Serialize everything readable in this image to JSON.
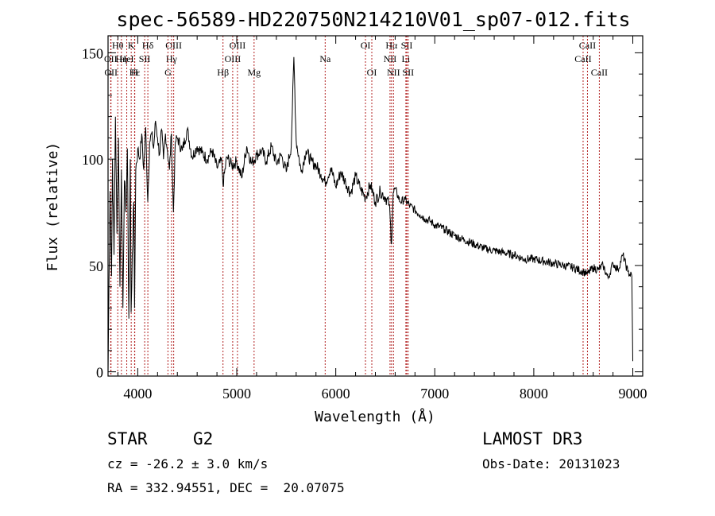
{
  "chart_data": {
    "type": "line",
    "title": "spec-56589-HD220750N214210V01_sp07-012.fits",
    "xlabel": "Wavelength (Å)",
    "ylabel": "Flux (relative)",
    "xlim": [
      3700,
      9100
    ],
    "ylim": [
      -2,
      158
    ],
    "x_ticks": [
      4000,
      5000,
      6000,
      7000,
      8000,
      9000
    ],
    "x_tick_labels": [
      "4000",
      "5000",
      "6000",
      "7000",
      "8000",
      "9000"
    ],
    "y_ticks": [
      0,
      50,
      100,
      150
    ],
    "y_tick_labels": [
      "0",
      "50",
      "100",
      "150"
    ],
    "series": [
      {
        "name": "spectrum",
        "x": [
          3700,
          3720,
          3735,
          3745,
          3760,
          3775,
          3790,
          3805,
          3820,
          3835,
          3850,
          3865,
          3880,
          3895,
          3910,
          3925,
          3933,
          3945,
          3960,
          3968,
          3980,
          4000,
          4020,
          4040,
          4060,
          4080,
          4101,
          4120,
          4140,
          4160,
          4180,
          4200,
          4220,
          4240,
          4260,
          4280,
          4300,
          4320,
          4340,
          4360,
          4380,
          4400,
          4450,
          4500,
          4550,
          4600,
          4650,
          4700,
          4750,
          4800,
          4850,
          4861,
          4900,
          4950,
          5000,
          5050,
          5100,
          5150,
          5200,
          5250,
          5300,
          5350,
          5400,
          5450,
          5500,
          5550,
          5577,
          5600,
          5650,
          5700,
          5750,
          5800,
          5850,
          5893,
          5950,
          6000,
          6050,
          6100,
          6150,
          6200,
          6250,
          6300,
          6350,
          6400,
          6450,
          6500,
          6540,
          6563,
          6580,
          6600,
          6650,
          6700,
          6750,
          6800,
          6850,
          6900,
          6950,
          7000,
          7100,
          7200,
          7300,
          7400,
          7500,
          7600,
          7700,
          7800,
          7900,
          8000,
          8100,
          8200,
          8300,
          8400,
          8500,
          8542,
          8600,
          8650,
          8700,
          8750,
          8800,
          8850,
          8900,
          8950,
          8990,
          9000
        ],
        "y": [
          0,
          85,
          45,
          100,
          55,
          120,
          65,
          110,
          40,
          95,
          30,
          90,
          75,
          105,
          25,
          100,
          28,
          55,
          80,
          30,
          95,
          105,
          100,
          112,
          95,
          115,
          80,
          108,
          112,
          105,
          118,
          110,
          102,
          114,
          100,
          112,
          104,
          95,
          112,
          75,
          108,
          110,
          104,
          114,
          101,
          106,
          103,
          100,
          104,
          96,
          99,
          88,
          101,
          97,
          99,
          91,
          106,
          98,
          102,
          104,
          99,
          106,
          98,
          102,
          94,
          106,
          148,
          109,
          94,
          104,
          99,
          97,
          93,
          89,
          96,
          87,
          94,
          89,
          84,
          92,
          86,
          82,
          88,
          80,
          85,
          82,
          79,
          60,
          84,
          86,
          80,
          81,
          78,
          76,
          74,
          72,
          71,
          69,
          67,
          64,
          62,
          60,
          58,
          57,
          56,
          55,
          53,
          53,
          52,
          51,
          50,
          49,
          47,
          46,
          49,
          48,
          50,
          44,
          51,
          48,
          55,
          47,
          45,
          5
        ]
      }
    ],
    "spectral_lines": [
      {
        "label": "Hθ",
        "wavelength": 3798,
        "row": 1
      },
      {
        "label": "K",
        "wavelength": 3934,
        "row": 1
      },
      {
        "label": "Hδ",
        "wavelength": 4102,
        "row": 1
      },
      {
        "label": "OIII",
        "wavelength": 4363,
        "row": 1
      },
      {
        "label": "OIII",
        "wavelength": 5007,
        "row": 1
      },
      {
        "label": "OI",
        "wavelength": 6300,
        "row": 1
      },
      {
        "label": "Hα",
        "wavelength": 6563,
        "row": 1
      },
      {
        "label": "SII",
        "wavelength": 6717,
        "row": 1
      },
      {
        "label": "CaII",
        "wavelength": 8542,
        "row": 1
      },
      {
        "label": "OII",
        "wavelength": 3727,
        "row": 2
      },
      {
        "label": "Hη",
        "wavelength": 3835,
        "row": 2
      },
      {
        "label": "HeI",
        "wavelength": 3889,
        "row": 2
      },
      {
        "label": "SII",
        "wavelength": 4070,
        "row": 2
      },
      {
        "label": "Hγ",
        "wavelength": 4341,
        "row": 2
      },
      {
        "label": "OIII",
        "wavelength": 4959,
        "row": 2
      },
      {
        "label": "NII",
        "wavelength": 6548,
        "row": 2
      },
      {
        "label": "Li",
        "wavelength": 6708,
        "row": 2
      },
      {
        "label": "CaII",
        "wavelength": 8498,
        "row": 2
      },
      {
        "label": "OII",
        "wavelength": 3730,
        "row": 3
      },
      {
        "label": "Hε",
        "wavelength": 3970,
        "row": 3
      },
      {
        "label": "H",
        "wavelength": 3968,
        "row": 3
      },
      {
        "label": "G",
        "wavelength": 4305,
        "row": 3
      },
      {
        "label": "Hβ",
        "wavelength": 4861,
        "row": 3
      },
      {
        "label": "Mg",
        "wavelength": 5175,
        "row": 3
      },
      {
        "label": "Na",
        "wavelength": 5893,
        "row": 2
      },
      {
        "label": "OI",
        "wavelength": 6364,
        "row": 3
      },
      {
        "label": "NII",
        "wavelength": 6583,
        "row": 3
      },
      {
        "label": "SII",
        "wavelength": 6731,
        "row": 3
      },
      {
        "label": "CaII",
        "wavelength": 8662,
        "row": 3
      }
    ]
  },
  "info": {
    "class_label": "STAR",
    "subclass_label": "G2",
    "survey": "LAMOST DR3",
    "velocity": "cz = -26.2 ± 3.0 km/s",
    "obs_date": "Obs-Date: 20131023",
    "coords": "RA = 332.94551, DEC =  20.07075"
  },
  "colors": {
    "line": "#000000",
    "spectral_line": "#b22222",
    "axes": "#000000"
  }
}
